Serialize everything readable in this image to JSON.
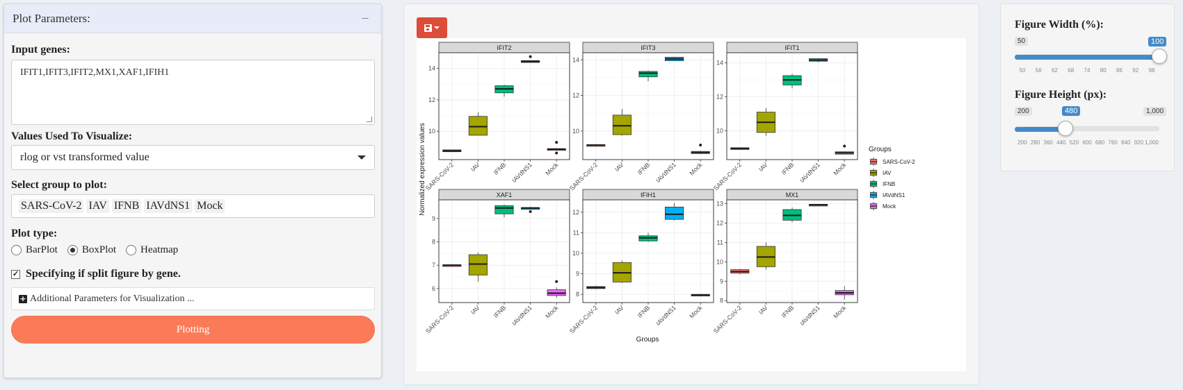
{
  "left_panel": {
    "title": "Plot Parameters:",
    "collapse_icon": "minus-icon",
    "input_genes_label": "Input genes:",
    "input_genes_value": "IFIT1,IFIT3,IFIT2,MX1,XAF1,IFIH1",
    "values_label": "Values Used To Visualize:",
    "values_selected": "rlog or vst transformed value",
    "group_label": "Select group to plot:",
    "groups": [
      "SARS-CoV-2",
      "IAV",
      "IFNB",
      "IAVdNS1",
      "Mock"
    ],
    "plot_type_label": "Plot type:",
    "plot_types": [
      "BarPlot",
      "BoxPlot",
      "Heatmap"
    ],
    "plot_type_selected": "BoxPlot",
    "split_checkbox_label": "Specifying if split figure by gene.",
    "split_checked": true,
    "additional_params_label": "Additional Parameters for Visualization ...",
    "plot_button_label": "Plotting"
  },
  "mid_panel": {
    "save_icon": "floppy-disk-icon"
  },
  "right_panel": {
    "width_label": "Figure Width (%):",
    "width_min": "50",
    "width_max": "100",
    "width_value": 100,
    "width_ticks": [
      "50",
      "56",
      "62",
      "68",
      "74",
      "80",
      "86",
      "92",
      "98"
    ],
    "height_label": "Figure Height (px):",
    "height_min": "200",
    "height_max": "1,000",
    "height_value_label": "480",
    "height_value": 480,
    "height_ticks": [
      "200",
      "280",
      "360",
      "440",
      "520",
      "600",
      "680",
      "760",
      "840",
      "920",
      "1,000"
    ]
  },
  "chart_data": {
    "type": "boxplot",
    "ylabel": "Normalized expression values",
    "xlabel": "Groups",
    "legend_title": "Groups",
    "legend_position": "right",
    "categories": [
      "SARS-CoV-2",
      "IAV",
      "IFNB",
      "IAVdNS1",
      "Mock"
    ],
    "colors": [
      "#f8766d",
      "#a3a500",
      "#00bf7d",
      "#00b0f6",
      "#e76bf3"
    ],
    "panels": [
      {
        "gene": "IFIT2",
        "ylim": [
          8.2,
          15.0
        ],
        "yticks": [
          10,
          12,
          14
        ],
        "boxes": [
          {
            "min": 8.68,
            "q1": 8.7,
            "median": 8.76,
            "q3": 8.82,
            "max": 8.84,
            "outliers": []
          },
          {
            "min": 9.75,
            "q1": 9.75,
            "median": 10.3,
            "q3": 10.95,
            "max": 11.2,
            "outliers": []
          },
          {
            "min": 12.2,
            "q1": 12.45,
            "median": 12.7,
            "q3": 12.9,
            "max": 12.95,
            "outliers": []
          },
          {
            "min": 14.38,
            "q1": 14.38,
            "median": 14.45,
            "q3": 14.5,
            "max": 14.52,
            "outliers": [
              14.75
            ]
          },
          {
            "min": 8.78,
            "q1": 8.82,
            "median": 8.86,
            "q3": 8.9,
            "max": 8.92,
            "outliers": [
              9.3,
              8.62
            ]
          }
        ]
      },
      {
        "gene": "IFIT3",
        "ylim": [
          8.4,
          14.4
        ],
        "yticks": [
          10,
          12,
          14
        ],
        "boxes": [
          {
            "min": 9.18,
            "q1": 9.2,
            "median": 9.22,
            "q3": 9.24,
            "max": 9.26,
            "outliers": []
          },
          {
            "min": 9.75,
            "q1": 9.8,
            "median": 10.3,
            "q3": 10.9,
            "max": 11.25,
            "outliers": []
          },
          {
            "min": 12.8,
            "q1": 13.05,
            "median": 13.25,
            "q3": 13.35,
            "max": 13.4,
            "outliers": []
          },
          {
            "min": 13.95,
            "q1": 13.95,
            "median": 14.05,
            "q3": 14.15,
            "max": 14.17,
            "outliers": []
          },
          {
            "min": 8.72,
            "q1": 8.74,
            "median": 8.8,
            "q3": 8.86,
            "max": 8.88,
            "outliers": [
              9.22
            ]
          }
        ]
      },
      {
        "gene": "IFIT1",
        "ylim": [
          8.3,
          14.6
        ],
        "yticks": [
          10,
          12,
          14
        ],
        "boxes": [
          {
            "min": 8.9,
            "q1": 8.92,
            "median": 8.96,
            "q3": 9.0,
            "max": 9.02,
            "outliers": []
          },
          {
            "min": 9.7,
            "q1": 9.9,
            "median": 10.5,
            "q3": 11.1,
            "max": 11.35,
            "outliers": []
          },
          {
            "min": 12.5,
            "q1": 12.7,
            "median": 13.0,
            "q3": 13.25,
            "max": 13.35,
            "outliers": []
          },
          {
            "min": 14.05,
            "q1": 14.1,
            "median": 14.17,
            "q3": 14.25,
            "max": 14.27,
            "outliers": []
          },
          {
            "min": 8.62,
            "q1": 8.62,
            "median": 8.7,
            "q3": 8.76,
            "max": 8.78,
            "outliers": [
              9.1
            ]
          }
        ]
      },
      {
        "gene": "XAF1",
        "ylim": [
          5.4,
          9.8
        ],
        "yticks": [
          6,
          7,
          8,
          9
        ],
        "boxes": [
          {
            "min": 6.98,
            "q1": 6.98,
            "median": 7.0,
            "q3": 7.02,
            "max": 7.04,
            "outliers": []
          },
          {
            "min": 6.3,
            "q1": 6.58,
            "median": 7.05,
            "q3": 7.45,
            "max": 7.55,
            "outliers": []
          },
          {
            "min": 9.05,
            "q1": 9.2,
            "median": 9.45,
            "q3": 9.55,
            "max": 9.6,
            "outliers": []
          },
          {
            "min": 9.4,
            "q1": 9.4,
            "median": 9.45,
            "q3": 9.47,
            "max": 9.5,
            "outliers": [
              9.3
            ]
          },
          {
            "min": 5.6,
            "q1": 5.7,
            "median": 5.8,
            "q3": 5.95,
            "max": 6.05,
            "outliers": [
              6.3
            ]
          }
        ]
      },
      {
        "gene": "IFIH1",
        "ylim": [
          7.6,
          12.6
        ],
        "yticks": [
          8,
          9,
          10,
          11,
          12
        ],
        "boxes": [
          {
            "min": 8.25,
            "q1": 8.28,
            "median": 8.33,
            "q3": 8.38,
            "max": 8.42,
            "outliers": []
          },
          {
            "min": 8.55,
            "q1": 8.6,
            "median": 9.05,
            "q3": 9.55,
            "max": 9.65,
            "outliers": []
          },
          {
            "min": 10.55,
            "q1": 10.6,
            "median": 10.75,
            "q3": 10.85,
            "max": 11.0,
            "outliers": []
          },
          {
            "min": 11.6,
            "q1": 11.65,
            "median": 11.9,
            "q3": 12.25,
            "max": 12.45,
            "outliers": []
          },
          {
            "min": 7.92,
            "q1": 7.94,
            "median": 7.97,
            "q3": 8.0,
            "max": 8.02,
            "outliers": []
          }
        ]
      },
      {
        "gene": "MX1",
        "ylim": [
          7.9,
          13.2
        ],
        "yticks": [
          8,
          9,
          10,
          11,
          12,
          13
        ],
        "boxes": [
          {
            "min": 9.35,
            "q1": 9.42,
            "median": 9.5,
            "q3": 9.6,
            "max": 9.65,
            "outliers": []
          },
          {
            "min": 9.6,
            "q1": 9.75,
            "median": 10.25,
            "q3": 10.8,
            "max": 11.0,
            "outliers": []
          },
          {
            "min": 12.05,
            "q1": 12.15,
            "median": 12.4,
            "q3": 12.7,
            "max": 12.8,
            "outliers": []
          },
          {
            "min": 12.93,
            "q1": 12.93,
            "median": 12.95,
            "q3": 12.97,
            "max": 12.98,
            "outliers": []
          },
          {
            "min": 8.05,
            "q1": 8.3,
            "median": 8.4,
            "q3": 8.52,
            "max": 8.75,
            "outliers": []
          }
        ]
      }
    ]
  }
}
